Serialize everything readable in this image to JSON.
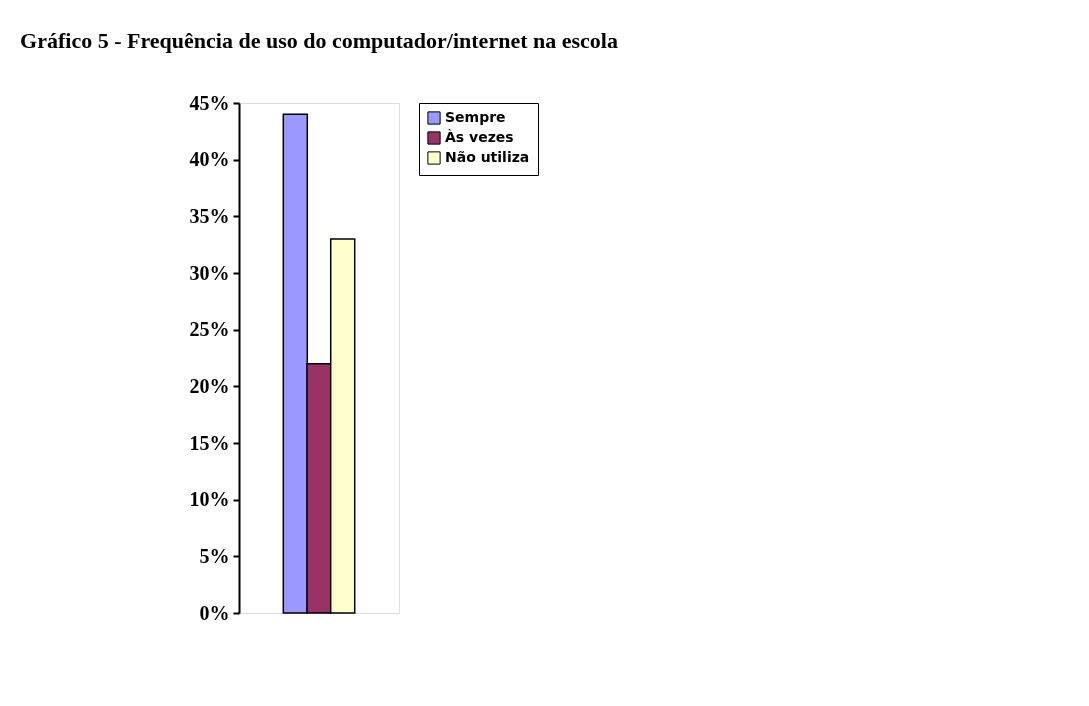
{
  "chart_data": {
    "type": "bar",
    "title": "Gráfico 5 - Frequência de uso do computador/internet na escola",
    "categories": [
      null
    ],
    "series": [
      {
        "name": "Sempre",
        "color": "#9999ff",
        "values": [
          44
        ]
      },
      {
        "name": "Às vezes",
        "color": "#993366",
        "values": [
          22
        ]
      },
      {
        "name": "Não utiliza",
        "color": "#ffffcc",
        "values": [
          33
        ]
      }
    ],
    "ylim": [
      0,
      45
    ],
    "yticks": [
      {
        "value": 0,
        "label": "0%"
      },
      {
        "value": 5,
        "label": "5%"
      },
      {
        "value": 10,
        "label": "10%"
      },
      {
        "value": 15,
        "label": "15%"
      },
      {
        "value": 20,
        "label": "20%"
      },
      {
        "value": 25,
        "label": "25%"
      },
      {
        "value": 30,
        "label": "30%"
      },
      {
        "value": 35,
        "label": "35%"
      },
      {
        "value": 40,
        "label": "40%"
      },
      {
        "value": 45,
        "label": "45%"
      }
    ],
    "grid": false,
    "legend": "right",
    "tick_labels": "y"
  }
}
